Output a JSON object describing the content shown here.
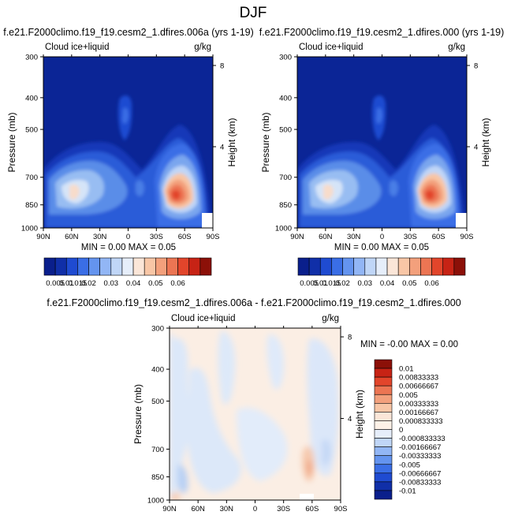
{
  "page_title": "DJF",
  "chart_data": [
    {
      "type": "heatmap",
      "panel": "case",
      "title": "f.e21.F2000climo.f19_f19.cesm2_1.dfires.006a (yrs 1-19)",
      "left_label": "Cloud ice+liquid",
      "right_label": "g/kg",
      "ylabel": "Pressure (mb)",
      "ylabel_right": "Height (km)",
      "x_tick_labels": [
        "90N",
        "60N",
        "30N",
        "0",
        "30S",
        "60S",
        "90S"
      ],
      "x_range": [
        90,
        -90
      ],
      "y_tick_labels": [
        "300",
        "400",
        "500",
        "700",
        "850",
        "1000"
      ],
      "y_ticks": [
        300,
        400,
        500,
        700,
        850,
        1000
      ],
      "y_range_mb": [
        300,
        1000
      ],
      "height_tick_labels": [
        "8",
        "4"
      ],
      "height_ticks_km": [
        8,
        4
      ],
      "stats_text": "MIN =  0.00  MAX =  0.05",
      "min": 0.0,
      "max": 0.05,
      "features": [
        {
          "lat": -48,
          "p": 860,
          "value": 0.05
        },
        {
          "lat": 60,
          "p": 860,
          "value": 0.027
        },
        {
          "lat": 0,
          "p": 545,
          "value": 0.012
        }
      ]
    },
    {
      "type": "heatmap",
      "panel": "control",
      "title": "f.e21.F2000climo.f19_f19.cesm2_1.dfires.000 (yrs 1-19)",
      "left_label": "Cloud ice+liquid",
      "right_label": "g/kg",
      "ylabel": "Pressure (mb)",
      "ylabel_right": "Height (km)",
      "x_tick_labels": [
        "90N",
        "60N",
        "30N",
        "0",
        "30S",
        "60S",
        "90S"
      ],
      "x_range": [
        90,
        -90
      ],
      "y_tick_labels": [
        "300",
        "400",
        "500",
        "700",
        "850",
        "1000"
      ],
      "y_ticks": [
        300,
        400,
        500,
        700,
        850,
        1000
      ],
      "y_range_mb": [
        300,
        1000
      ],
      "height_tick_labels": [
        "8",
        "4"
      ],
      "height_ticks_km": [
        8,
        4
      ],
      "stats_text": "MIN =  0.00  MAX =  0.05",
      "min": 0.0,
      "max": 0.05,
      "features": [
        {
          "lat": -48,
          "p": 860,
          "value": 0.05
        },
        {
          "lat": 60,
          "p": 860,
          "value": 0.027
        },
        {
          "lat": 0,
          "p": 545,
          "value": 0.012
        }
      ]
    },
    {
      "type": "heatmap",
      "panel": "difference",
      "title": "f.e21.F2000climo.f19_f19.cesm2_1.dfires.006a - f.e21.F2000climo.f19_f19.cesm2_1.dfires.000",
      "left_label": "Cloud ice+liquid",
      "right_label": "g/kg",
      "ylabel": "Pressure (mb)",
      "ylabel_right": "Height (km)",
      "x_tick_labels": [
        "90N",
        "60N",
        "30N",
        "0",
        "30S",
        "60S",
        "90S"
      ],
      "x_range": [
        90,
        -90
      ],
      "y_tick_labels": [
        "300",
        "400",
        "500",
        "700",
        "850",
        "1000"
      ],
      "y_ticks": [
        300,
        400,
        500,
        700,
        850,
        1000
      ],
      "y_range_mb": [
        300,
        1000
      ],
      "height_tick_labels": [
        "8",
        "4"
      ],
      "height_ticks_km": [
        8,
        4
      ],
      "stats_text": "MIN = -0.00  MAX =  0.00",
      "min": -0.0,
      "max": 0.0,
      "features": [
        {
          "lat": -58,
          "p": 860,
          "value": 0.0017
        },
        {
          "lat": -75,
          "p": 700,
          "value": -0.0008
        }
      ]
    }
  ],
  "colorbar_top": {
    "labels": [
      "0.005",
      "0.01",
      "0.015",
      "0.02",
      "0.03",
      "0.04",
      "0.05",
      "0.06"
    ],
    "colors": [
      "#0a1f8c",
      "#102fa8",
      "#1f4bd1",
      "#3a6ee6",
      "#6494ef",
      "#92b6f5",
      "#c0d6f7",
      "#e6eefa",
      "#fbe6d8",
      "#f8c6a6",
      "#f3a07c",
      "#ec7553",
      "#e2452b",
      "#c72315",
      "#8c1008"
    ]
  },
  "colorbar_diff": {
    "labels": [
      "0.01",
      "0.00833333",
      "0.00666667",
      "0.005",
      "0.00333333",
      "0.00166667",
      "0.000833333",
      "0",
      "-0.000833333",
      "-0.00166667",
      "-0.00333333",
      "-0.005",
      "-0.00666667",
      "-0.00833333",
      "-0.01"
    ],
    "colors": [
      "#8c1008",
      "#c72315",
      "#e2452b",
      "#ec7553",
      "#f3a07c",
      "#f8c6a6",
      "#fbe6d8",
      "#fdf1e7",
      "#e6eefa",
      "#c0d6f7",
      "#92b6f5",
      "#6494ef",
      "#3a6ee6",
      "#1f4bd1",
      "#102fa8",
      "#0a1f8c"
    ]
  }
}
